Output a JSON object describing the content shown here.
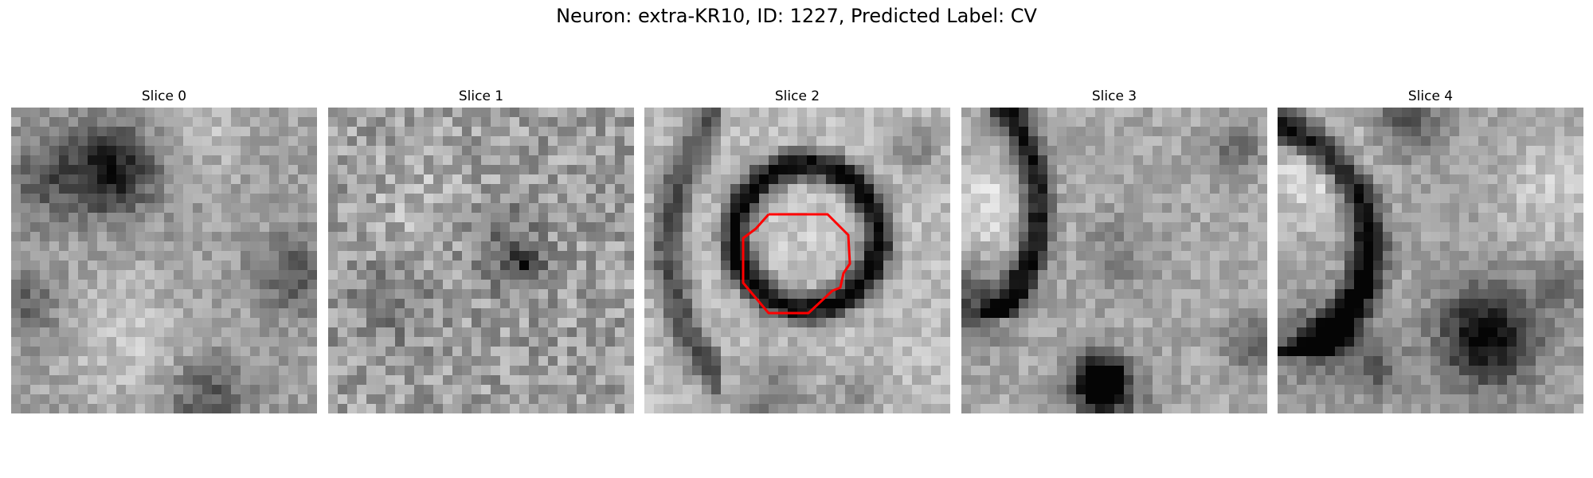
{
  "figure": {
    "title": "Neuron: extra-KR10, ID: 1227, Predicted Label: CV"
  },
  "panels": [
    {
      "title": "Slice 0"
    },
    {
      "title": "Slice 1"
    },
    {
      "title": "Slice 2"
    },
    {
      "title": "Slice 3"
    },
    {
      "title": "Slice 4"
    }
  ],
  "overlay": {
    "color": "#ff0000",
    "panel": "Slice 2"
  }
}
